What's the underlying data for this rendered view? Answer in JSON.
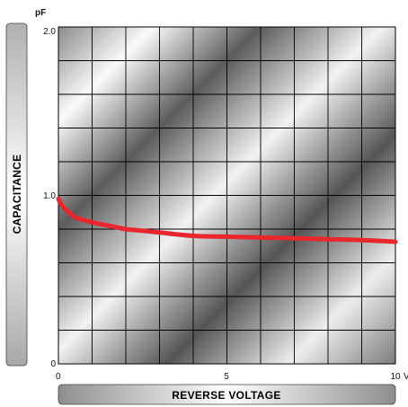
{
  "chart_data": {
    "type": "line",
    "title": "",
    "xlabel": "REVERSE VOLTAGE",
    "ylabel": "CAPACITANCE",
    "x_unit": "V",
    "y_unit": "pF",
    "xlim": [
      0,
      10
    ],
    "ylim": [
      0,
      2.0
    ],
    "x_ticks": [
      "0",
      "5",
      "10"
    ],
    "y_ticks": [
      "0",
      "1.0",
      "2.0"
    ],
    "x_grid_step": 1,
    "y_grid_step": 0.2,
    "grid": true,
    "series": [
      {
        "color": "#e8262c",
        "x": [
          0,
          0.1,
          0.3,
          0.5,
          1,
          1.5,
          2,
          2.5,
          3,
          4,
          5,
          6,
          7,
          8,
          9,
          10
        ],
        "y": [
          0.98,
          0.94,
          0.9,
          0.87,
          0.84,
          0.82,
          0.8,
          0.79,
          0.78,
          0.76,
          0.755,
          0.75,
          0.745,
          0.74,
          0.735,
          0.725
        ]
      }
    ]
  }
}
